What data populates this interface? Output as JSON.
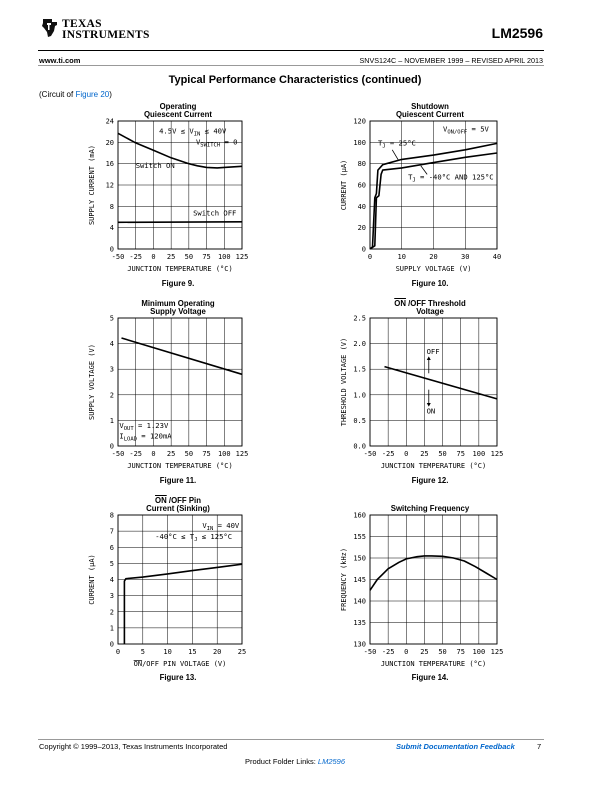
{
  "header": {
    "brand_line1": "TEXAS",
    "brand_line2": "INSTRUMENTS",
    "part_number": "LM2596",
    "website": "www.ti.com",
    "doc_info": "SNVS124C – NOVEMBER 1999 – REVISED APRIL 2013"
  },
  "section_title": "Typical Performance Characteristics (continued)",
  "circuit_note": {
    "prefix": "(Circuit of ",
    "link": "Figure 20",
    "suffix": ")"
  },
  "footer": {
    "copyright": "Copyright © 1999–2013, Texas Instruments Incorporated",
    "feedback": "Submit Documentation Feedback",
    "page": "7",
    "folder_prefix": "Product Folder Links: ",
    "folder_link": "LM2596"
  },
  "chart_data": [
    {
      "id": "fig9",
      "type": "line",
      "title_line1": "Operating",
      "title_line2": "Quiescent Current",
      "figure_label": "Figure 9.",
      "xlabel": "JUNCTION TEMPERATURE (°C)",
      "ylabel": "SUPPLY CURRENT (mA)",
      "xlim": [
        -50,
        125
      ],
      "ylim": [
        0,
        24
      ],
      "xticks": [
        -50,
        -25,
        0,
        25,
        50,
        75,
        100,
        125
      ],
      "yticks": [
        0,
        4,
        8,
        12,
        16,
        20,
        24
      ],
      "grid": true,
      "series": [
        {
          "x": [
            -50,
            -25,
            0,
            25,
            50,
            62,
            75,
            90,
            100,
            125
          ],
          "y": [
            21.7,
            19.9,
            18.5,
            17.1,
            16.0,
            15.6,
            15.3,
            15.2,
            15.3,
            15.5
          ]
        },
        {
          "x": [
            -50,
            125
          ],
          "y": [
            5.0,
            5.1
          ]
        }
      ],
      "annotations": [
        {
          "text": "4.5V ≤ V",
          "sub": "IN",
          "after": " ≤ 40V",
          "x": 8,
          "y": 21.7
        },
        {
          "text": "V",
          "sub": "SWITCH",
          "after": " = 0",
          "x": 60,
          "y": 19.6
        },
        {
          "text": "Switch ON",
          "x": -25,
          "y": 15.2
        },
        {
          "text": "Switch OFF",
          "x": 56,
          "y": 6.3
        }
      ]
    },
    {
      "id": "fig10",
      "type": "line",
      "title_line1": "Shutdown",
      "title_line2": "Quiescent Current",
      "figure_label": "Figure 10.",
      "xlabel": "SUPPLY VOLTAGE (V)",
      "ylabel": "CURRENT (μA)",
      "xlim": [
        0,
        40
      ],
      "ylim": [
        0,
        120
      ],
      "xticks": [
        0,
        10,
        20,
        30,
        40
      ],
      "yticks": [
        0,
        20,
        40,
        60,
        80,
        100,
        120
      ],
      "grid": true,
      "series": [
        {
          "x": [
            0,
            0.8,
            1.5,
            2,
            2.5,
            4,
            10,
            20,
            30,
            40
          ],
          "y": [
            0,
            2,
            48,
            52,
            74,
            79,
            84,
            88,
            93,
            99
          ]
        },
        {
          "x": [
            0,
            1.5,
            2,
            2.8,
            3.5,
            4,
            10,
            20,
            30,
            40
          ],
          "y": [
            0,
            3,
            48,
            50,
            70,
            74,
            76,
            81,
            86,
            90
          ]
        }
      ],
      "annotations": [
        {
          "text": "V",
          "sub": "ON/OFF",
          "after": " = 5V",
          "x": 23,
          "y": 110
        },
        {
          "text": "T",
          "sub": "J",
          "after": " = 25°C",
          "x": 2.5,
          "y": 97
        },
        {
          "text": "T",
          "sub": "J",
          "after": " = -40°C AND 125°C",
          "x": 12,
          "y": 65
        }
      ]
    },
    {
      "id": "fig11",
      "type": "line",
      "title_line1": "Minimum Operating",
      "title_line2": "Supply Voltage",
      "figure_label": "Figure 11.",
      "xlabel": "JUNCTION TEMPERATURE (°C)",
      "ylabel": "SUPPLY VOLTAGE (V)",
      "xlim": [
        -50,
        125
      ],
      "ylim": [
        0,
        5
      ],
      "xticks": [
        -50,
        -25,
        0,
        25,
        50,
        75,
        100,
        125
      ],
      "yticks": [
        0,
        1,
        2,
        3,
        4,
        5
      ],
      "grid": true,
      "series": [
        {
          "x": [
            -45,
            125
          ],
          "y": [
            4.22,
            2.8
          ]
        }
      ],
      "annotations": [
        {
          "text": "V",
          "sub": "OUT",
          "after": " = 1.23V",
          "x": -48,
          "y": 0.7
        },
        {
          "text": "I",
          "sub": "LOAD",
          "after": " = 120mA",
          "x": -48,
          "y": 0.3
        }
      ]
    },
    {
      "id": "fig12",
      "type": "line",
      "title_line1": "ON /OFF Threshold",
      "title_line1_overline": "ON",
      "title_line1_rest": " /OFF Threshold",
      "title_line2": "Voltage",
      "figure_label": "Figure 12.",
      "xlabel": "JUNCTION TEMPERATURE (°C)",
      "ylabel": "THRESHOLD VOLTAGE (V)",
      "xlim": [
        -50,
        125
      ],
      "ylim": [
        0,
        2.5
      ],
      "xticks": [
        -50,
        -25,
        0,
        25,
        50,
        75,
        100,
        125
      ],
      "yticks": [
        0,
        0.5,
        1.0,
        1.5,
        2.0,
        2.5
      ],
      "grid": true,
      "series": [
        {
          "x": [
            -30,
            125
          ],
          "y": [
            1.55,
            0.92
          ]
        }
      ],
      "annotations": [
        {
          "text": "OFF",
          "x": 28,
          "y": 1.8
        },
        {
          "text": "ON",
          "x": 28,
          "y": 0.63
        }
      ]
    },
    {
      "id": "fig13",
      "type": "line",
      "title_line1": "ON /OFF Pin",
      "title_line1_overline": "ON",
      "title_line1_rest": " /OFF Pin",
      "title_line2": "Current (Sinking)",
      "figure_label": "Figure 13.",
      "xlabel": "ON/OFF PIN VOLTAGE (V)",
      "xlabel_overline": "ON",
      "xlabel_rest": "/OFF PIN VOLTAGE (V)",
      "ylabel": "CURRENT (μA)",
      "xlim": [
        0,
        25
      ],
      "ylim": [
        0,
        8
      ],
      "xticks": [
        0,
        5,
        10,
        15,
        20,
        25
      ],
      "yticks": [
        0,
        1,
        2,
        3,
        4,
        5,
        6,
        7,
        8
      ],
      "grid": true,
      "series": [
        {
          "x": [
            1.3,
            1.3,
            1.6,
            5,
            10,
            15,
            20,
            25
          ],
          "y": [
            0,
            3.9,
            4.05,
            4.15,
            4.35,
            4.55,
            4.75,
            4.95
          ]
        }
      ],
      "annotations": [
        {
          "text": "V",
          "sub": "IN",
          "after": " = 40V",
          "x": 17,
          "y": 7.2
        },
        {
          "text": "-40°C ≤ T",
          "sub": "J",
          "after": " ≤ 125°C",
          "x": 7.5,
          "y": 6.5
        }
      ]
    },
    {
      "id": "fig14",
      "type": "line",
      "title_line1": "Switching Frequency",
      "title_line2": "",
      "figure_label": "Figure 14.",
      "xlabel": "JUNCTION TEMPERATURE (°C)",
      "ylabel": "FREQUENCY (kHz)",
      "xlim": [
        -50,
        125
      ],
      "ylim": [
        130,
        160
      ],
      "xticks": [
        -50,
        -25,
        0,
        25,
        50,
        75,
        100,
        125
      ],
      "yticks": [
        130,
        135,
        140,
        145,
        150,
        155,
        160
      ],
      "grid": true,
      "series": [
        {
          "x": [
            -50,
            -40,
            -25,
            -10,
            0,
            15,
            25,
            35,
            50,
            65,
            80,
            95,
            110,
            125
          ],
          "y": [
            142.5,
            145.0,
            147.5,
            149.0,
            149.8,
            150.3,
            150.5,
            150.5,
            150.4,
            150.0,
            149.3,
            148.0,
            146.5,
            145.0
          ]
        }
      ],
      "annotations": []
    }
  ]
}
